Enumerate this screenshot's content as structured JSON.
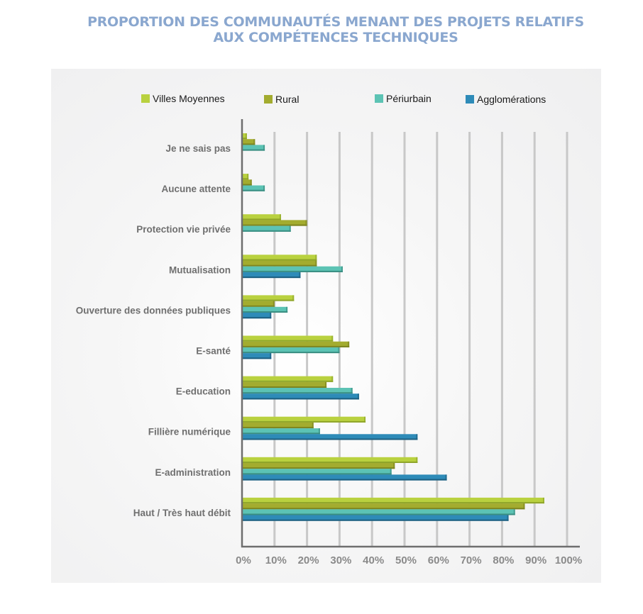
{
  "chart_data": {
    "type": "bar",
    "orientation": "horizontal",
    "title": "PROPORTION DES COMMUNAUTÉS MENANT DES PROJETS RELATIFS AUX COMPÉTENCES TECHNIQUES",
    "title_lines": [
      "PROPORTION DES COMMUNAUTÉS MENANT DES PROJETS RELATIFS",
      "AUX COMPÉTENCES TECHNIQUES"
    ],
    "xlabel": "",
    "ylabel": "",
    "xlim": [
      0,
      100
    ],
    "x_unit": "%",
    "grid": true,
    "legend_position": "top",
    "x_ticks": [
      "0%",
      "10%",
      "20%",
      "30%",
      "40%",
      "50%",
      "60%",
      "70%",
      "80%",
      "90%",
      "100%"
    ],
    "categories": [
      "Je ne sais pas",
      "Aucune attente",
      "Protection vie privée",
      "Mutualisation",
      "Ouverture des données publiques",
      "E-santé",
      "E-education",
      "Fillière numérique",
      "E-administration",
      "Haut / Très haut débit"
    ],
    "series": [
      {
        "name": "Villes Moyennes",
        "color": "#b9d13f",
        "values": [
          1.5,
          2,
          12,
          23,
          16,
          28,
          28,
          38,
          54,
          93
        ]
      },
      {
        "name": "Rural",
        "color": "#a3ac2f",
        "values": [
          4,
          3,
          20,
          23,
          10,
          33,
          26,
          22,
          47,
          87
        ]
      },
      {
        "name": "Périurbain",
        "color": "#5cc3b4",
        "values": [
          7,
          7,
          15,
          31,
          14,
          30,
          34,
          24,
          46,
          84
        ]
      },
      {
        "name": "Agglomérations",
        "color": "#2e8bb8",
        "values": [
          0,
          0,
          0,
          18,
          9,
          9,
          36,
          54,
          63,
          82
        ]
      }
    ]
  }
}
